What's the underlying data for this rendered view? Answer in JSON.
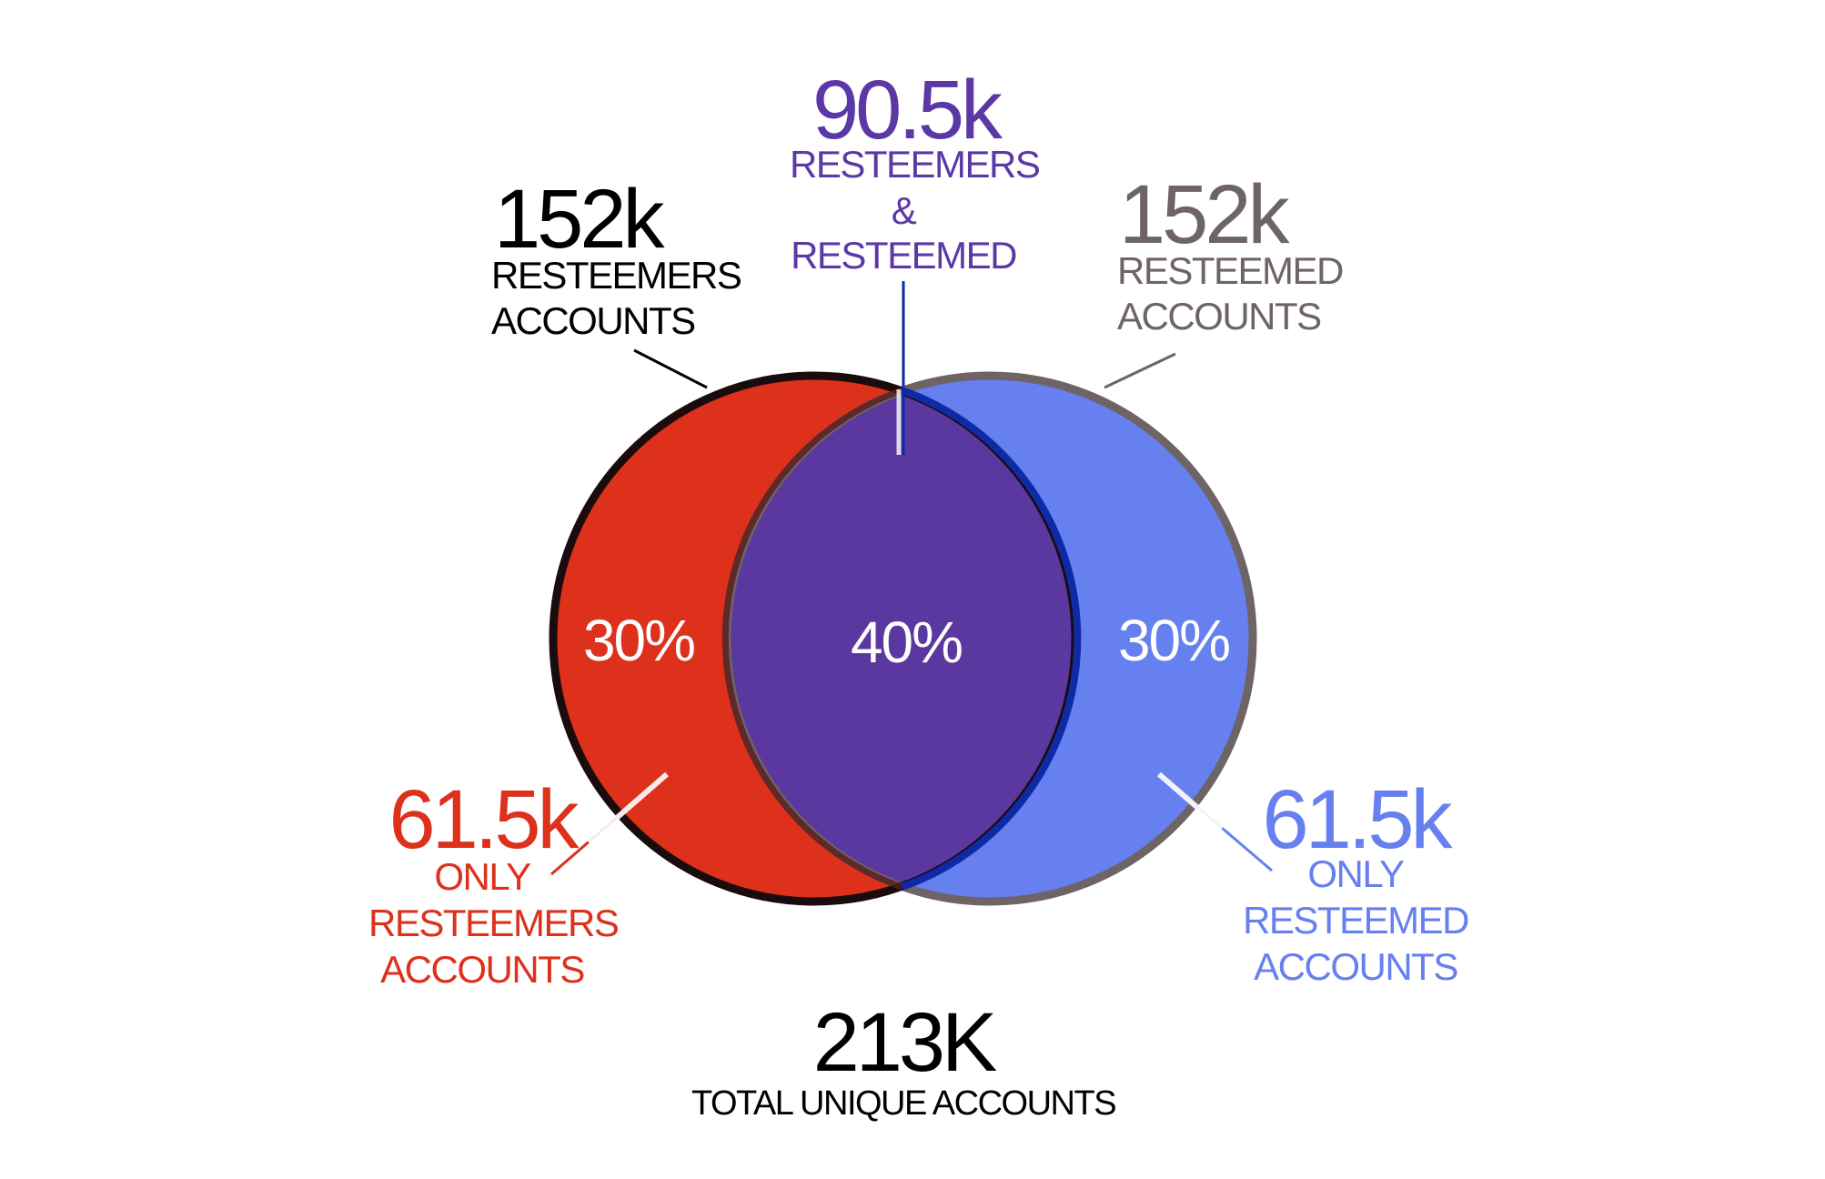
{
  "colors": {
    "left_fill": "#dd311b",
    "left_stroke": "#1a0c0c",
    "right_fill": "#6680ef",
    "right_stroke": "#6e6466",
    "overlap_fill": "#5b389f",
    "overlap_stroke": "#0e2aa6",
    "purple_text": "#5b38a6",
    "red_text": "#dd311b",
    "blue_text": "#6680ef",
    "grey_text": "#6e6466",
    "black_text": "#000000"
  },
  "resteemers": {
    "value": "152k",
    "line1": "RESTEEMERS",
    "line2": "ACCOUNTS"
  },
  "resteemed": {
    "value": "152k",
    "line1": "RESTEEMED",
    "line2": "ACCOUNTS"
  },
  "overlap": {
    "value": "90.5k",
    "line1": "RESTEEMERS",
    "line2": "&",
    "line3": "RESTEEMED",
    "percent": "40%"
  },
  "only_resteemers": {
    "value": "61.5k",
    "line1": "ONLY",
    "line2": "RESTEEMERS",
    "line3": "ACCOUNTS",
    "percent": "30%"
  },
  "only_resteemed": {
    "value": "61.5k",
    "line1": "ONLY",
    "line2": "RESTEEMED",
    "line3": "ACCOUNTS",
    "percent": "30%"
  },
  "total": {
    "value": "213K",
    "label": "TOTAL UNIQUE ACCOUNTS"
  }
}
